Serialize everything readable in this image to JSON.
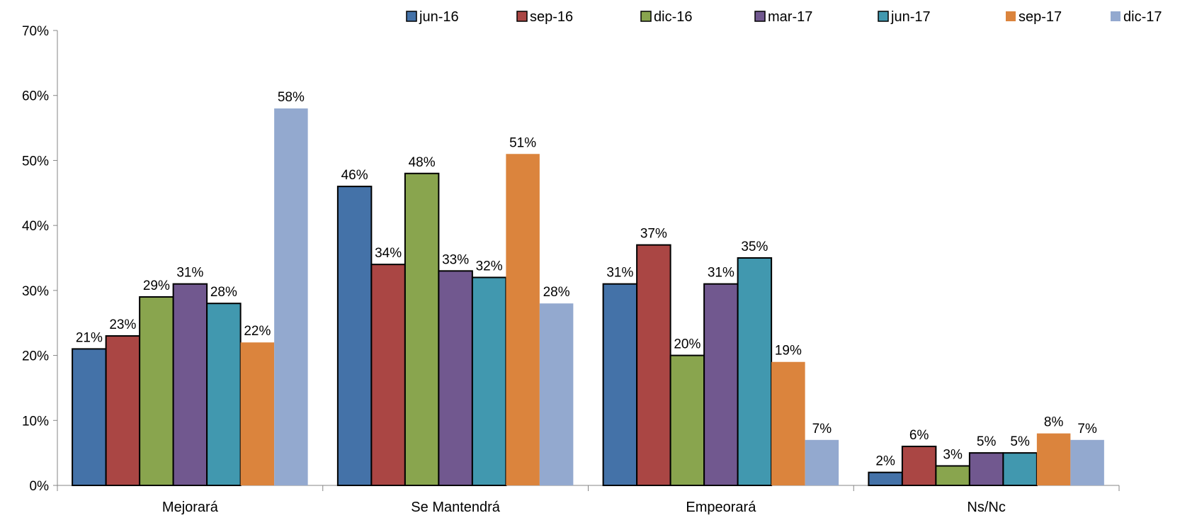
{
  "chart_data": {
    "type": "bar",
    "title": "",
    "xlabel": "",
    "ylabel": "",
    "ylim": [
      0,
      70
    ],
    "y_ticks": [
      0,
      10,
      20,
      30,
      40,
      50,
      60,
      70
    ],
    "y_tick_labels": [
      "0%",
      "10%",
      "20%",
      "30%",
      "40%",
      "50%",
      "60%",
      "70%"
    ],
    "value_suffix": "%",
    "grid": false,
    "legend_position": "top-right",
    "categories": [
      "Mejorará",
      "Se Mantendrá",
      "Empeorará",
      "Ns/Nc"
    ],
    "series": [
      {
        "name": "jun-16",
        "color": "#4472a8",
        "outlined": true,
        "values": [
          21,
          46,
          31,
          2
        ]
      },
      {
        "name": "sep-16",
        "color": "#aa4644",
        "outlined": true,
        "values": [
          23,
          34,
          37,
          6
        ]
      },
      {
        "name": "dic-16",
        "color": "#89a54e",
        "outlined": true,
        "values": [
          29,
          48,
          20,
          3
        ]
      },
      {
        "name": "mar-17",
        "color": "#71588f",
        "outlined": true,
        "values": [
          31,
          33,
          31,
          5
        ]
      },
      {
        "name": "jun-17",
        "color": "#4198af",
        "outlined": true,
        "values": [
          28,
          32,
          35,
          5
        ]
      },
      {
        "name": "sep-17",
        "color": "#db843d",
        "outlined": false,
        "values": [
          22,
          51,
          19,
          8
        ]
      },
      {
        "name": "dic-17",
        "color": "#93a9cf",
        "outlined": false,
        "values": [
          58,
          28,
          7,
          7
        ]
      }
    ]
  }
}
